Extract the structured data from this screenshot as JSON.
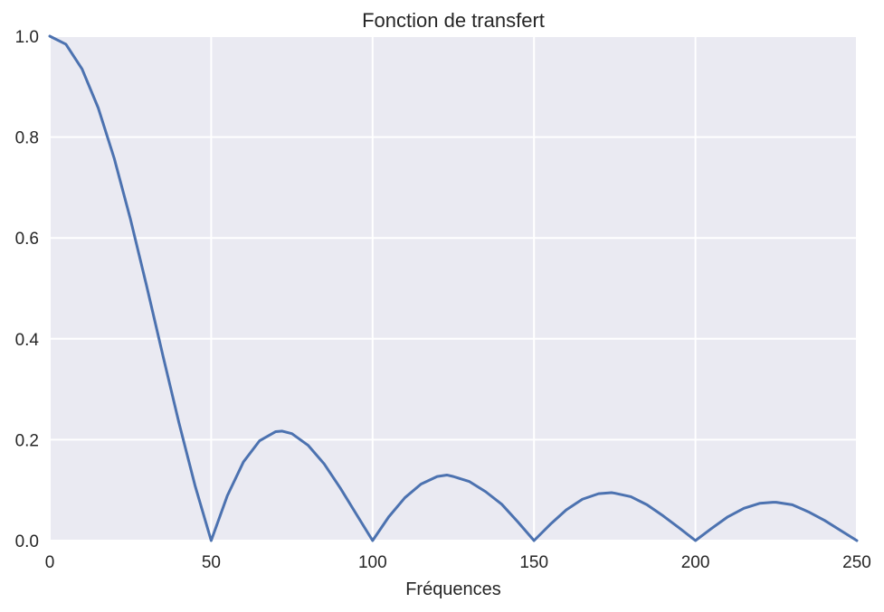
{
  "chart_data": {
    "type": "line",
    "title": "Fonction de transfert",
    "xlabel": "Fréquences",
    "ylabel": "",
    "xlim": [
      0,
      250
    ],
    "ylim": [
      0,
      1.0
    ],
    "xticks": [
      0,
      50,
      100,
      150,
      200,
      250
    ],
    "yticks": [
      0.0,
      0.2,
      0.4,
      0.6,
      0.8,
      1.0
    ],
    "xtick_labels": [
      "0",
      "50",
      "100",
      "150",
      "200",
      "250"
    ],
    "ytick_labels": [
      "0.0",
      "0.2",
      "0.4",
      "0.6",
      "0.8",
      "1.0"
    ],
    "grid": true,
    "series": [
      {
        "color": "#4c72b0",
        "x": [
          0,
          5,
          10,
          15,
          20,
          25,
          30,
          35,
          40,
          45,
          50,
          55,
          60,
          65,
          70,
          72,
          75,
          80,
          85,
          90,
          95,
          100,
          105,
          110,
          115,
          120,
          123,
          125,
          130,
          135,
          140,
          145,
          150,
          155,
          160,
          165,
          170,
          174,
          175,
          180,
          185,
          190,
          195,
          200,
          205,
          210,
          215,
          220,
          224,
          225,
          230,
          235,
          240,
          245,
          250
        ],
        "y": [
          1.0,
          0.984,
          0.935,
          0.858,
          0.757,
          0.637,
          0.505,
          0.368,
          0.234,
          0.109,
          0.0,
          0.089,
          0.156,
          0.198,
          0.216,
          0.217,
          0.212,
          0.189,
          0.152,
          0.104,
          0.052,
          0.0,
          0.047,
          0.085,
          0.112,
          0.127,
          0.13,
          0.127,
          0.117,
          0.097,
          0.072,
          0.037,
          0.0,
          0.032,
          0.061,
          0.082,
          0.093,
          0.095,
          0.094,
          0.087,
          0.071,
          0.049,
          0.025,
          0.0,
          0.024,
          0.047,
          0.064,
          0.074,
          0.076,
          0.076,
          0.071,
          0.057,
          0.04,
          0.02,
          0.0
        ]
      }
    ],
    "colors": {
      "plot_background": "#eaeaf2",
      "grid": "#ffffff",
      "line": "#4c72b0",
      "text": "#262626"
    }
  }
}
